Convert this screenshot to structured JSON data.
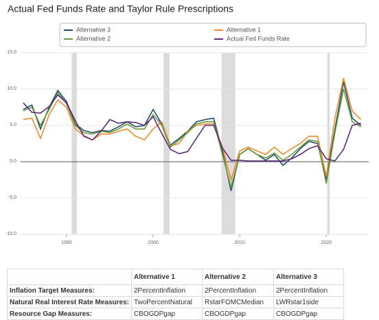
{
  "chart_data": {
    "type": "line",
    "title": "Actual Fed Funds Rate and Taylor Rule Prescriptions",
    "x": [
      1985,
      1986,
      1987,
      1988,
      1989,
      1990,
      1991,
      1992,
      1993,
      1994,
      1995,
      1996,
      1997,
      1998,
      1999,
      2000,
      2001,
      2002,
      2003,
      2004,
      2005,
      2006,
      2007,
      2008,
      2009,
      2010,
      2011,
      2012,
      2013,
      2014,
      2015,
      2016,
      2017,
      2018,
      2019,
      2020,
      2021,
      2022,
      2023,
      2024
    ],
    "series": [
      {
        "name": "Alternative 3",
        "color": "#1d4f6b",
        "values": [
          7.2,
          7.8,
          4.5,
          7.5,
          9.8,
          8.3,
          5.2,
          4.3,
          4.0,
          4.3,
          4.2,
          4.8,
          5.5,
          4.8,
          5.0,
          7.2,
          5.2,
          2.3,
          3.2,
          4.2,
          5.5,
          5.8,
          6.0,
          1.5,
          -4.0,
          1.0,
          1.8,
          1.0,
          0.2,
          1.0,
          -0.5,
          0.5,
          1.8,
          2.8,
          2.5,
          -2.5,
          4.5,
          11.0,
          6.0,
          5.0
        ]
      },
      {
        "name": "Alternative 1",
        "color": "#f08a2a",
        "values": [
          5.8,
          6.0,
          3.2,
          6.5,
          8.5,
          7.5,
          4.5,
          3.6,
          3.0,
          3.8,
          3.8,
          4.2,
          4.5,
          3.5,
          3.0,
          4.5,
          5.5,
          2.2,
          2.5,
          4.2,
          5.0,
          5.2,
          5.2,
          2.0,
          -2.5,
          1.5,
          2.0,
          1.5,
          1.0,
          2.0,
          1.0,
          1.8,
          2.5,
          3.5,
          3.5,
          -2.0,
          6.0,
          11.5,
          7.0,
          5.8
        ]
      },
      {
        "name": "Alternative 2",
        "color": "#6a9a3a",
        "values": [
          7.0,
          7.5,
          5.0,
          7.2,
          9.5,
          8.0,
          5.0,
          4.0,
          3.8,
          4.2,
          4.0,
          4.5,
          5.2,
          4.5,
          4.5,
          6.5,
          5.0,
          2.0,
          3.0,
          4.0,
          5.2,
          5.5,
          5.5,
          1.0,
          -3.5,
          1.0,
          1.8,
          1.0,
          0.5,
          1.2,
          0.2,
          1.0,
          2.0,
          3.0,
          2.8,
          -3.0,
          4.0,
          10.0,
          5.5,
          4.8
        ]
      },
      {
        "name": "Actual Fed Funds Rate",
        "color": "#5b2a7a",
        "values": [
          8.1,
          6.8,
          6.7,
          7.6,
          9.2,
          8.1,
          5.7,
          3.5,
          3.0,
          4.2,
          5.8,
          5.3,
          5.5,
          5.4,
          5.0,
          6.2,
          3.9,
          1.7,
          1.1,
          1.4,
          3.2,
          5.0,
          5.0,
          1.9,
          0.2,
          0.2,
          0.1,
          0.1,
          0.1,
          0.1,
          0.1,
          0.4,
          1.0,
          1.8,
          2.2,
          0.4,
          0.1,
          1.7,
          5.0,
          5.3
        ]
      }
    ],
    "recessions": [
      [
        1990.6,
        1991.2
      ],
      [
        2001.2,
        2001.9
      ],
      [
        2007.9,
        2009.5
      ],
      [
        2020.1,
        2020.4
      ]
    ],
    "xlim": [
      1984.7,
      2024.9
    ],
    "xticks": [
      1990,
      2000,
      2010,
      2020
    ],
    "ylim": [
      -10,
      15
    ],
    "yticks": [
      {
        "value": -10,
        "label": "-10.0"
      },
      {
        "value": -5,
        "label": "-5.0"
      },
      {
        "value": 0,
        "label": "0.0"
      },
      {
        "value": 5,
        "label": "5.0"
      },
      {
        "value": 10,
        "label": "10.0"
      },
      {
        "value": 15,
        "label": "15.0"
      }
    ],
    "grid": true,
    "legend": "top"
  },
  "table": {
    "header": [
      "Alternative 1",
      "Alternative 2",
      "Alternative 3"
    ],
    "rows": [
      [
        "Inflation Target Measures:",
        "2PercentInflation",
        "2PercentInflation",
        "2PercentInflation"
      ],
      [
        "Natural Real Interest Rate Measures:",
        "TwoPercentNatural",
        "RstarFOMCMedian",
        "LWRstar1side"
      ],
      [
        "Resource Gap Measures:",
        "CBOGDPgap",
        "CBOGDPgap",
        "CBOGDPgap"
      ]
    ]
  }
}
